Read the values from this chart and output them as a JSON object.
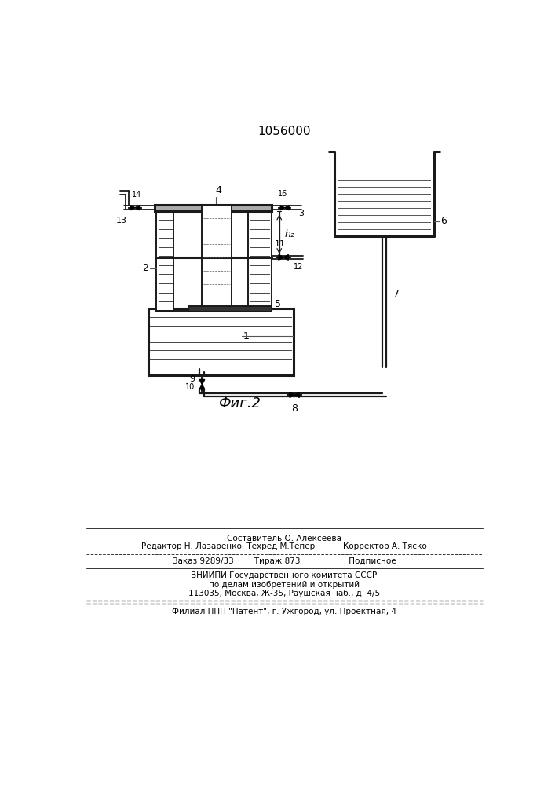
{
  "title": "1056000",
  "fig_label": "Фиг.2",
  "line_color": "#1a1a1a",
  "footer_lines": [
    "Составитель О. Алексеева",
    "Редактор Н. Лазаренко  Техред М.Тепер           Корректор А. Тяско",
    "Заказ 9289/33        Тираж 873                   Подписное",
    "ВНИИПИ Государственного комитета СССР",
    "по делам изобретений и открытий",
    "113035, Москва, Ж-35, Раушская наб., д. 4/5",
    "Филиал ППП \"Патент\", г. Ужгород, ул. Проектная, 4"
  ]
}
